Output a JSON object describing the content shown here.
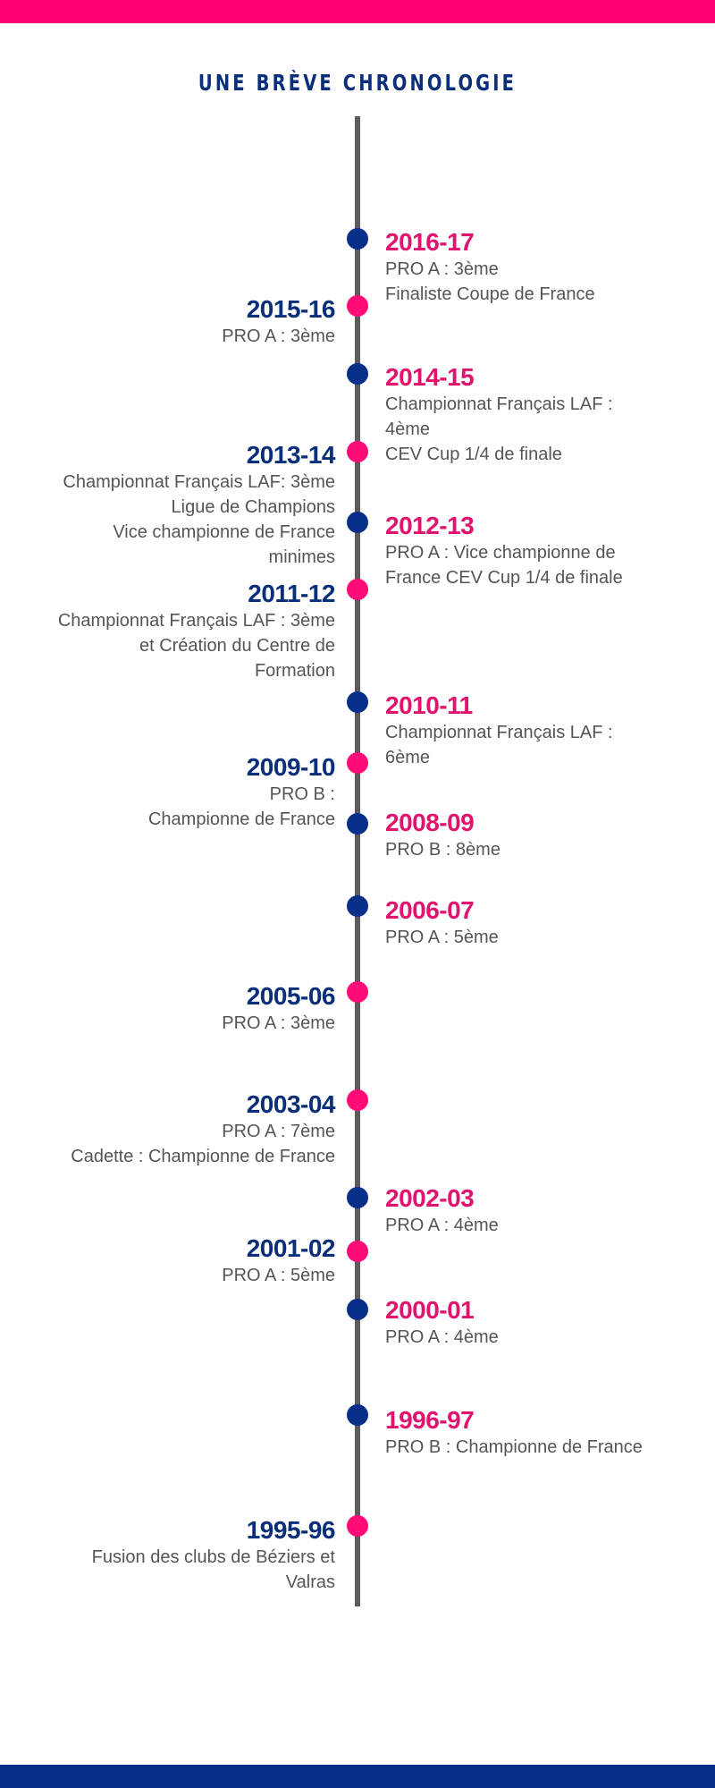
{
  "title": "UNE BRÈVE CHRONOLOGIE",
  "colors": {
    "pink": "#ff0073",
    "navy": "#052f88",
    "line": "#5b5b5b",
    "text": "#555555"
  },
  "entries": [
    {
      "year": "2016-17",
      "side": "right",
      "dot": "blue",
      "lines": "PRO A : 3ème\nFinaliste Coupe de France"
    },
    {
      "year": "2015-16",
      "side": "left",
      "dot": "pink",
      "lines": "PRO A : 3ème"
    },
    {
      "year": "2014-15",
      "side": "right",
      "dot": "blue",
      "lines": "Championnat Français LAF :\n4ème\nCEV Cup 1/4 de finale"
    },
    {
      "year": "2013-14",
      "side": "left",
      "dot": "pink",
      "lines": "Championnat Français LAF: 3ème\nLigue de Champions\nVice championne de France\nminimes"
    },
    {
      "year": "2012-13",
      "side": "right",
      "dot": "blue",
      "lines": "PRO A : Vice championne de\nFrance CEV Cup 1/4 de finale"
    },
    {
      "year": "2011-12",
      "side": "left",
      "dot": "pink",
      "lines": "Championnat Français LAF : 3ème\net Création du Centre de\nFormation"
    },
    {
      "year": "2010-11",
      "side": "right",
      "dot": "blue",
      "lines": "Championnat Français LAF :\n6ème"
    },
    {
      "year": "2009-10",
      "side": "left",
      "dot": "pink",
      "lines": "PRO B :\nChampionne de France"
    },
    {
      "year": "2008-09",
      "side": "right",
      "dot": "blue",
      "lines": "PRO B : 8ème"
    },
    {
      "year": "2006-07",
      "side": "right",
      "dot": "blue",
      "lines": "PRO A : 5ème"
    },
    {
      "year": "2005-06",
      "side": "left",
      "dot": "pink",
      "lines": "PRO A : 3ème"
    },
    {
      "year": "2003-04",
      "side": "left",
      "dot": "pink",
      "lines": "PRO A : 7ème\nCadette : Championne de France"
    },
    {
      "year": "2002-03",
      "side": "right",
      "dot": "blue",
      "lines": "PRO A : 4ème"
    },
    {
      "year": "2001-02",
      "side": "left",
      "dot": "pink",
      "lines": "PRO A : 5ème"
    },
    {
      "year": "2000-01",
      "side": "right",
      "dot": "blue",
      "lines": "PRO A : 4ème"
    },
    {
      "year": "1996-97",
      "side": "right",
      "dot": "blue",
      "lines": "PRO B : Championne de France"
    },
    {
      "year": "1995-96",
      "side": "left",
      "dot": "pink",
      "lines": "Fusion des clubs de Béziers et\nValras"
    }
  ]
}
